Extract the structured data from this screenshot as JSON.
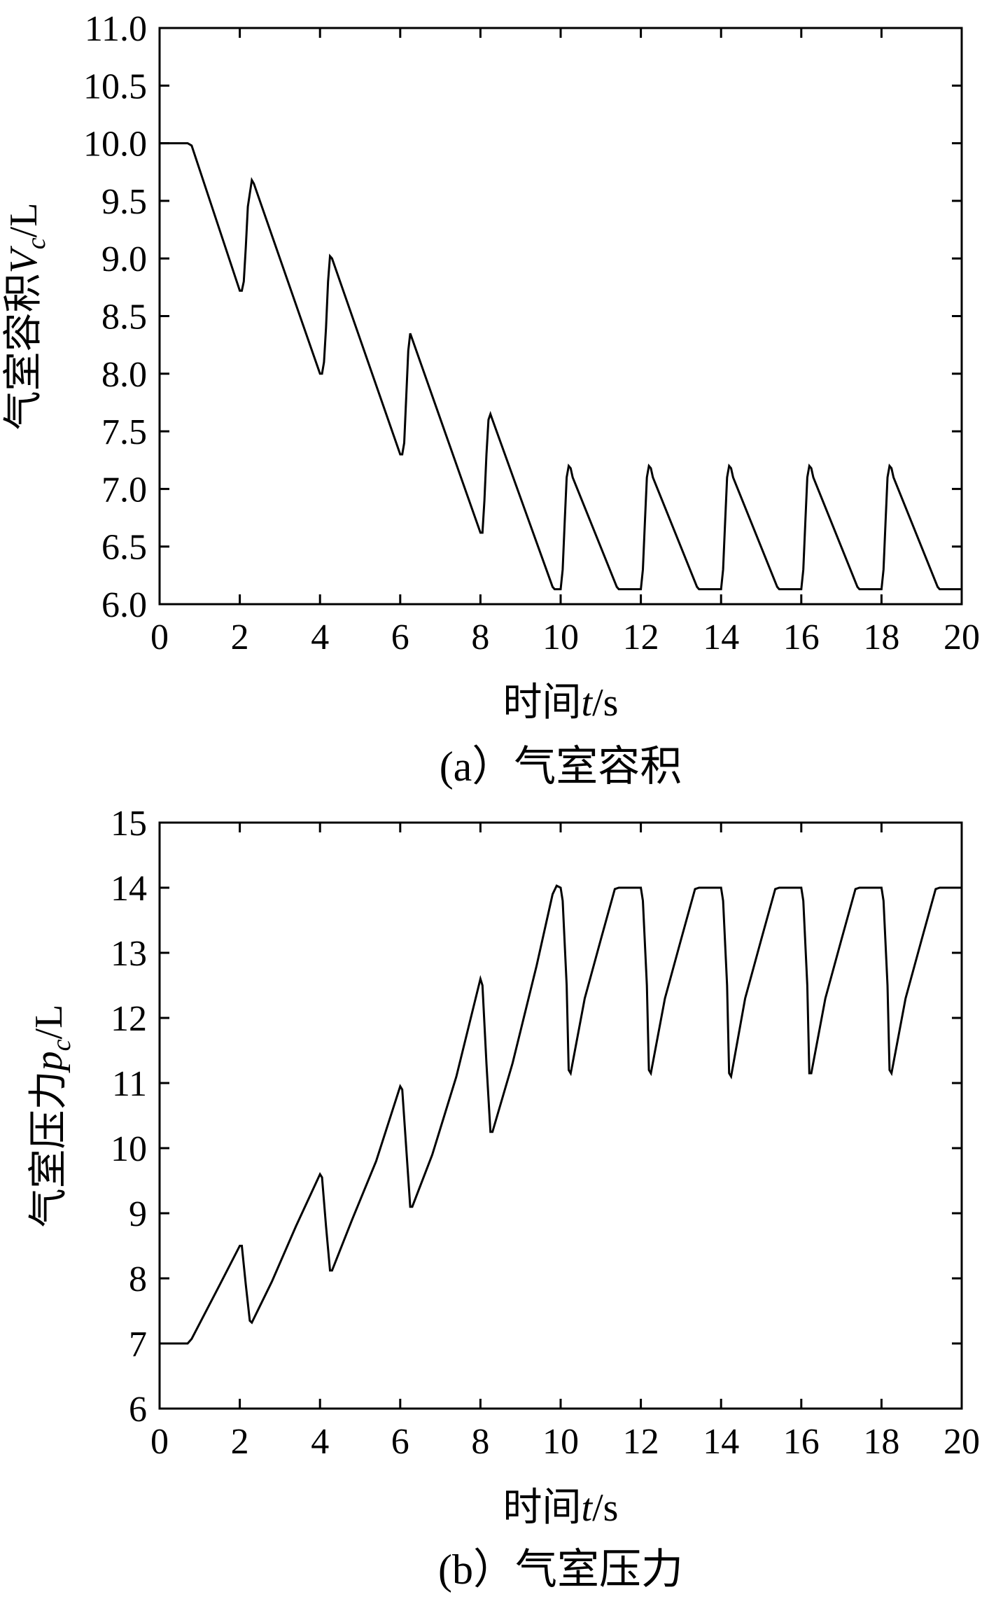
{
  "chart_data": [
    {
      "id": "a",
      "type": "line",
      "caption": "(a）气室容积",
      "xlabel": {
        "main": "时间",
        "var": "t",
        "unit": "/s"
      },
      "ylabel": {
        "main": "气室容积",
        "var": "V",
        "sub": "c",
        "unit": "/L"
      },
      "xlim": [
        0,
        20
      ],
      "ylim": [
        6.0,
        11.0
      ],
      "xticks": [
        "0",
        "2",
        "4",
        "6",
        "8",
        "10",
        "12",
        "14",
        "16",
        "18",
        "20"
      ],
      "yticks": [
        "6.0",
        "6.5",
        "7.0",
        "7.5",
        "8.0",
        "8.5",
        "9.0",
        "9.5",
        "10.0",
        "10.5",
        "11.0"
      ],
      "grid": false,
      "series": [
        {
          "x": [
            0,
            0.7,
            0.8,
            2.0,
            2.05,
            2.1,
            2.15,
            2.2,
            2.3,
            2.35,
            4.0,
            4.05,
            4.1,
            4.15,
            4.2,
            4.25,
            4.3,
            6.0,
            6.05,
            6.1,
            6.15,
            6.2,
            6.25,
            6.3,
            8.0,
            8.05,
            8.1,
            8.15,
            8.2,
            8.25,
            8.3,
            9.8,
            9.85,
            10.0,
            10.05,
            10.1,
            10.15,
            10.2,
            10.25,
            10.3,
            11.4,
            11.45,
            12.0,
            12.05,
            12.1,
            12.15,
            12.2,
            12.25,
            12.3,
            13.4,
            13.45,
            14.0,
            14.05,
            14.1,
            14.15,
            14.2,
            14.25,
            14.3,
            15.4,
            15.45,
            16.0,
            16.05,
            16.1,
            16.15,
            16.2,
            16.25,
            16.3,
            17.4,
            17.45,
            18.0,
            18.05,
            18.1,
            18.15,
            18.2,
            18.25,
            18.3,
            19.4,
            19.45,
            20.0
          ],
          "y": [
            10.0,
            10.0,
            9.98,
            8.72,
            8.72,
            8.8,
            9.1,
            9.45,
            9.68,
            9.65,
            8.0,
            8.0,
            8.1,
            8.4,
            8.8,
            9.02,
            9.0,
            7.3,
            7.3,
            7.4,
            7.8,
            8.2,
            8.35,
            8.3,
            6.62,
            6.62,
            6.9,
            7.3,
            7.6,
            7.65,
            7.6,
            6.15,
            6.13,
            6.13,
            6.3,
            6.7,
            7.1,
            7.2,
            7.18,
            7.1,
            6.15,
            6.13,
            6.13,
            6.3,
            6.7,
            7.1,
            7.2,
            7.18,
            7.1,
            6.15,
            6.13,
            6.13,
            6.3,
            6.7,
            7.1,
            7.2,
            7.18,
            7.1,
            6.15,
            6.13,
            6.13,
            6.3,
            6.7,
            7.1,
            7.2,
            7.18,
            7.1,
            6.15,
            6.13,
            6.13,
            6.3,
            6.7,
            7.1,
            7.2,
            7.18,
            7.1,
            6.15,
            6.13,
            6.13
          ]
        }
      ]
    },
    {
      "id": "b",
      "type": "line",
      "caption": "(b）气室压力",
      "xlabel": {
        "main": "时间",
        "var": "t",
        "unit": "/s"
      },
      "ylabel": {
        "main": "气室压力",
        "var": "p",
        "sub": "c",
        "unit": "/L"
      },
      "xlim": [
        0,
        20
      ],
      "ylim": [
        6,
        15
      ],
      "xticks": [
        "0",
        "2",
        "4",
        "6",
        "8",
        "10",
        "12",
        "14",
        "16",
        "18",
        "20"
      ],
      "yticks": [
        "6",
        "7",
        "8",
        "9",
        "10",
        "11",
        "12",
        "13",
        "14",
        "15"
      ],
      "grid": false,
      "series": [
        {
          "x": [
            0,
            0.7,
            0.8,
            1.5,
            2.0,
            2.05,
            2.15,
            2.25,
            2.3,
            2.8,
            3.4,
            4.0,
            4.05,
            4.15,
            4.25,
            4.3,
            4.8,
            5.4,
            6.0,
            6.05,
            6.15,
            6.25,
            6.3,
            6.8,
            7.4,
            8.0,
            8.05,
            8.15,
            8.25,
            8.3,
            8.8,
            9.4,
            9.8,
            9.9,
            10.0,
            10.05,
            10.15,
            10.2,
            10.25,
            10.6,
            11.0,
            11.35,
            11.45,
            12.0,
            12.05,
            12.15,
            12.2,
            12.25,
            12.6,
            13.0,
            13.35,
            13.45,
            14.0,
            14.05,
            14.15,
            14.2,
            14.25,
            14.6,
            15.0,
            15.35,
            15.45,
            16.0,
            16.05,
            16.15,
            16.2,
            16.25,
            16.6,
            17.0,
            17.35,
            17.45,
            18.0,
            18.05,
            18.15,
            18.2,
            18.25,
            18.6,
            19.0,
            19.35,
            19.45,
            20.0
          ],
          "y": [
            7.0,
            7.0,
            7.07,
            7.9,
            8.5,
            8.5,
            7.9,
            7.35,
            7.32,
            7.95,
            8.8,
            9.6,
            9.55,
            8.8,
            8.12,
            8.12,
            8.9,
            9.8,
            10.95,
            10.9,
            10.0,
            9.1,
            9.1,
            9.9,
            11.1,
            12.6,
            12.5,
            11.3,
            10.25,
            10.25,
            11.3,
            12.8,
            13.9,
            14.03,
            14.0,
            13.8,
            12.5,
            11.2,
            11.15,
            12.3,
            13.2,
            13.98,
            14.0,
            14.0,
            13.8,
            12.5,
            11.2,
            11.15,
            12.3,
            13.2,
            13.98,
            14.0,
            14.0,
            13.8,
            12.5,
            11.15,
            11.1,
            12.3,
            13.2,
            13.98,
            14.0,
            14.0,
            13.8,
            12.5,
            11.15,
            11.15,
            12.3,
            13.2,
            13.98,
            14.0,
            14.0,
            13.8,
            12.5,
            11.2,
            11.15,
            12.3,
            13.2,
            13.98,
            14.0,
            14.0
          ]
        }
      ]
    }
  ]
}
